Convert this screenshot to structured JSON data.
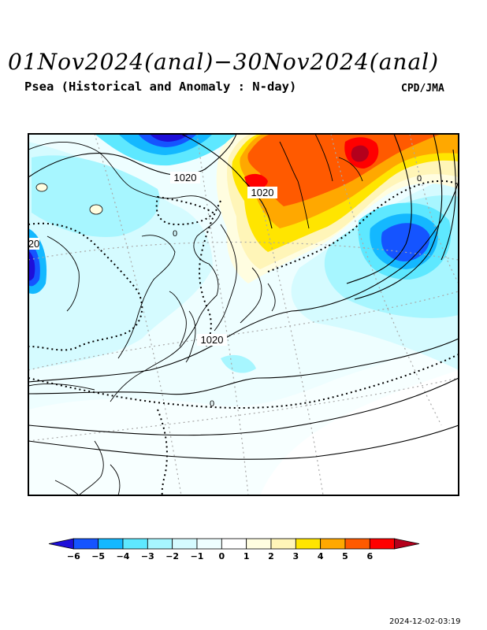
{
  "header": {
    "title": "01Nov2024(anal)−30Nov2024(anal)",
    "subtitle": "Psea (Historical and Anomaly : N-day)",
    "credit": "CPD/JMA"
  },
  "map": {
    "contour_labels": [
      "1020",
      "1020",
      "1020",
      "20",
      "0",
      "0",
      "0"
    ],
    "anomaly_colors": {
      "neg6": "#1e0fd9",
      "neg5": "#1554ff",
      "neg4": "#14b8ff",
      "neg3": "#5ee8ff",
      "neg2": "#a7f6ff",
      "neg1": "#d5fbff",
      "zero": "#eefeff",
      "pos1": "#fffde0",
      "pos2": "#fff5b8",
      "pos3": "#ffe500",
      "pos4": "#ffa800",
      "pos5": "#ff5a00",
      "pos6": "#ff0000",
      "pos7": "#b4001c"
    }
  },
  "colorbar": {
    "ticks": [
      "−6",
      "−5",
      "−4",
      "−3",
      "−2",
      "−1",
      "0",
      "1",
      "2",
      "3",
      "4",
      "5",
      "6"
    ],
    "colors": [
      "#1e0fd9",
      "#1554ff",
      "#14b8ff",
      "#5ee8ff",
      "#a7f6ff",
      "#d5fbff",
      "#eefeff",
      "#ffffff",
      "#fffde0",
      "#fff5b8",
      "#ffe500",
      "#ffa800",
      "#ff5a00",
      "#ff0000",
      "#b4001c"
    ]
  },
  "footer": {
    "timestamp": "2024-12-02-03:19"
  }
}
